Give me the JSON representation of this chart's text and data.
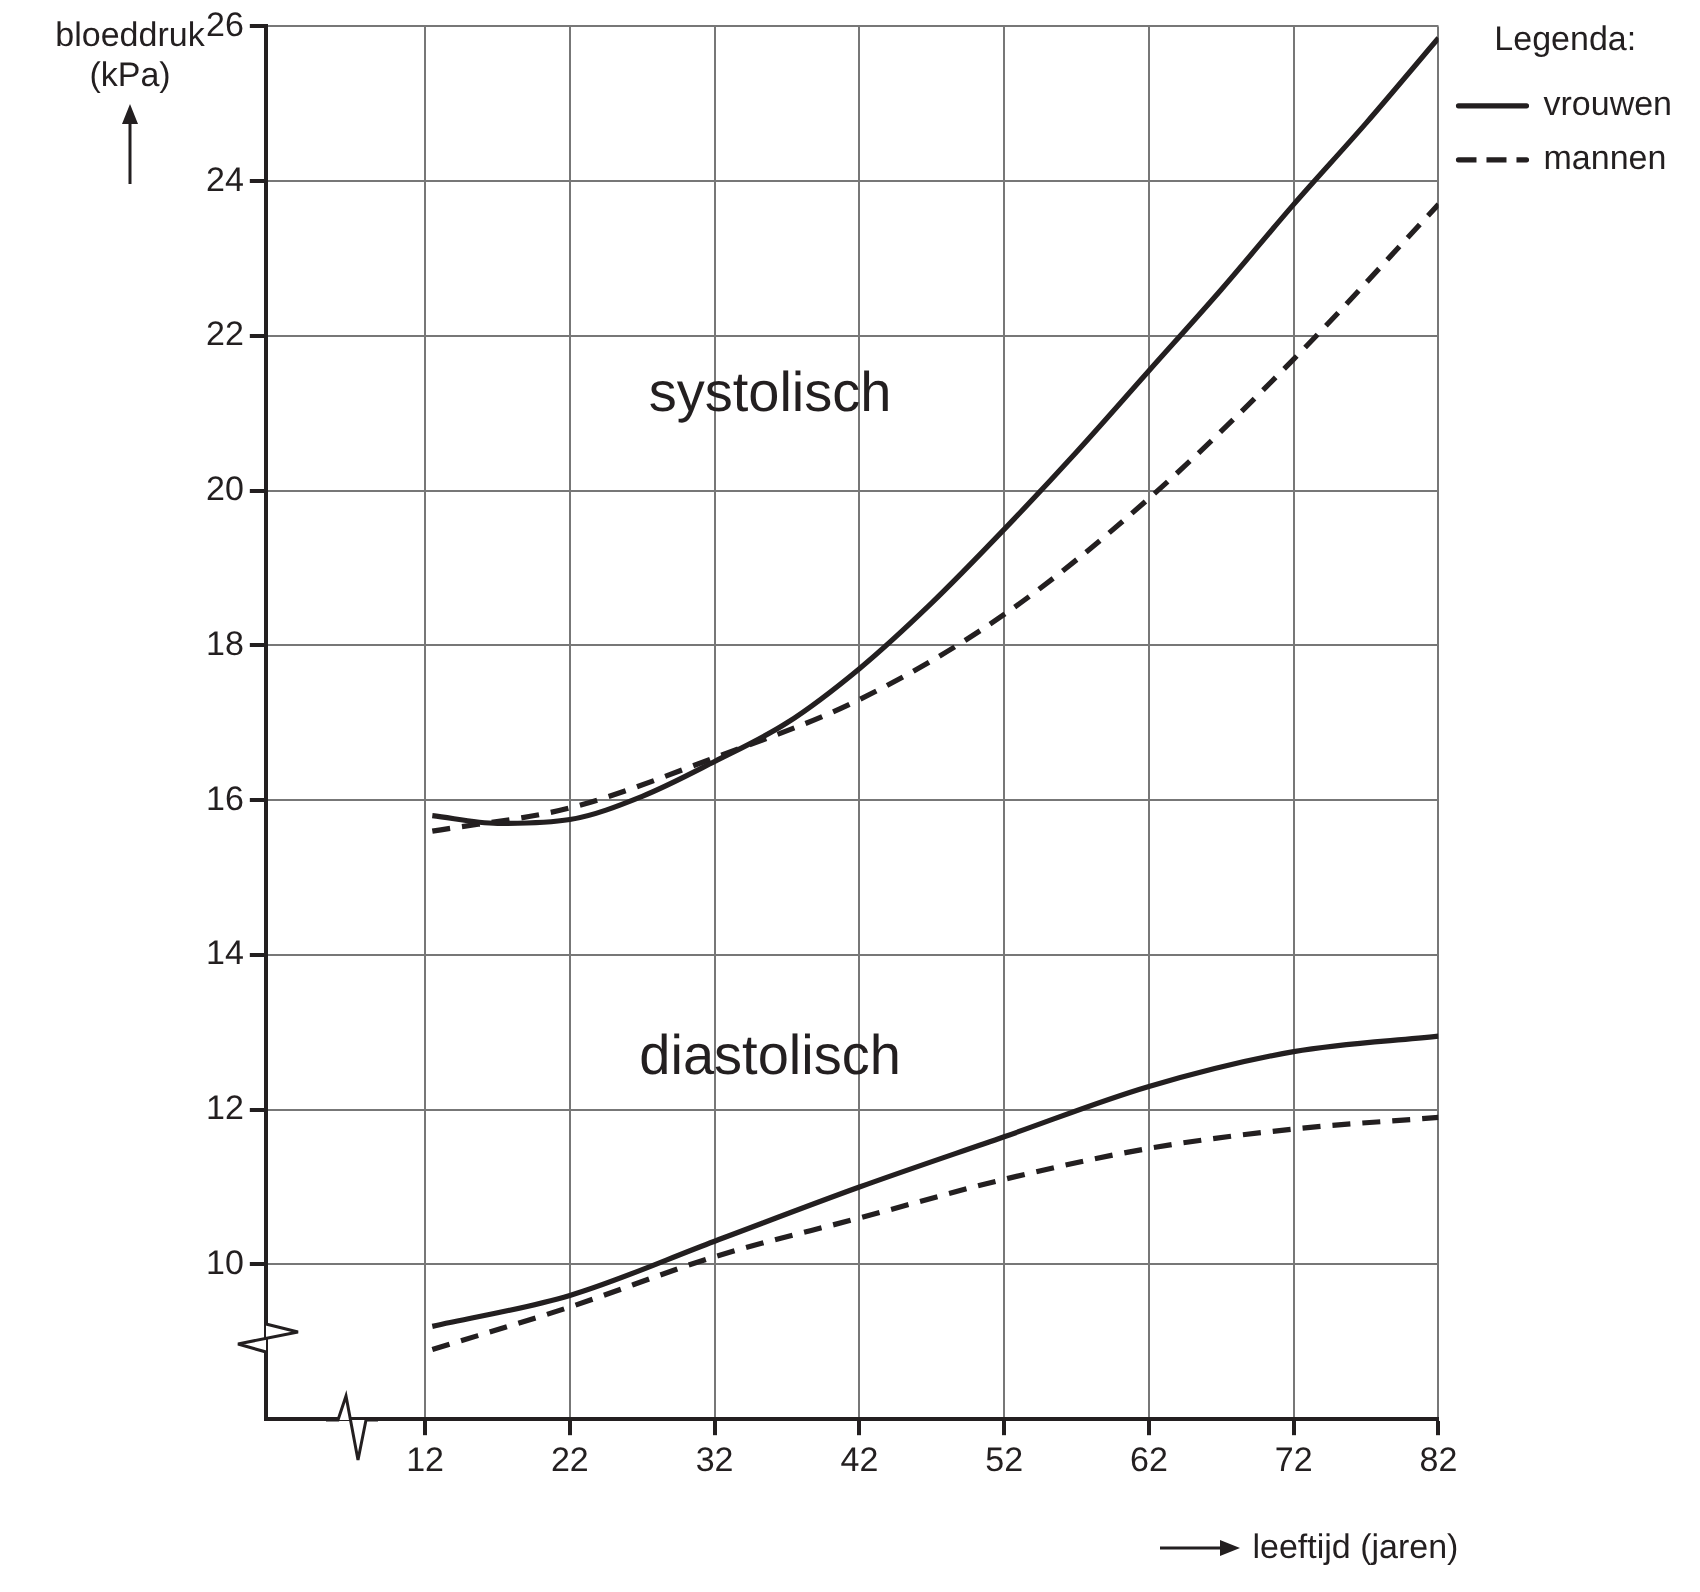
{
  "chart_data": {
    "type": "line",
    "xlabel": "leeftijd (jaren)",
    "ylabel": "bloeddruk (kPa)",
    "legend_title": "Legenda:",
    "legend": "top right",
    "grid": true,
    "marker": "none",
    "xlim": [
      1,
      82
    ],
    "xticks": [
      12,
      22,
      32,
      42,
      52,
      62,
      72,
      82
    ],
    "ylim": [
      8,
      26
    ],
    "yticks": [
      10,
      12,
      14,
      16,
      18,
      20,
      22,
      24,
      26
    ],
    "annotations": [
      "systolisch",
      "diastolisch"
    ],
    "series": [
      {
        "name": "vrouwen",
        "color": "#231f20",
        "line_style": "solid",
        "x": [
          12.5,
          17,
          22,
          27,
          32,
          37,
          42,
          47,
          52,
          57,
          62,
          67,
          72,
          77,
          82
        ],
        "values": [
          15.8,
          15.7,
          15.75,
          16.05,
          16.5,
          17.0,
          17.7,
          18.55,
          19.5,
          20.5,
          21.55,
          22.6,
          23.7,
          24.75,
          25.85
        ]
      },
      {
        "name": "mannen",
        "color": "#231f20",
        "line_style": "dashed",
        "x": [
          12.5,
          22,
          32,
          42,
          52,
          62,
          72,
          82
        ],
        "values": [
          15.6,
          15.9,
          16.55,
          17.3,
          18.4,
          19.9,
          21.7,
          23.7
        ]
      },
      {
        "color": "#231f20",
        "line_style": "solid",
        "x": [
          12.5,
          22,
          32,
          42,
          52,
          62,
          72,
          82
        ],
        "values": [
          9.2,
          9.6,
          10.3,
          11.0,
          11.65,
          12.3,
          12.75,
          12.95
        ]
      },
      {
        "color": "#231f20",
        "line_style": "dashed",
        "x": [
          12.5,
          22,
          32,
          42,
          52,
          62,
          72,
          82
        ],
        "values": [
          8.9,
          9.45,
          10.1,
          10.6,
          11.1,
          11.5,
          11.75,
          11.9
        ]
      }
    ]
  }
}
